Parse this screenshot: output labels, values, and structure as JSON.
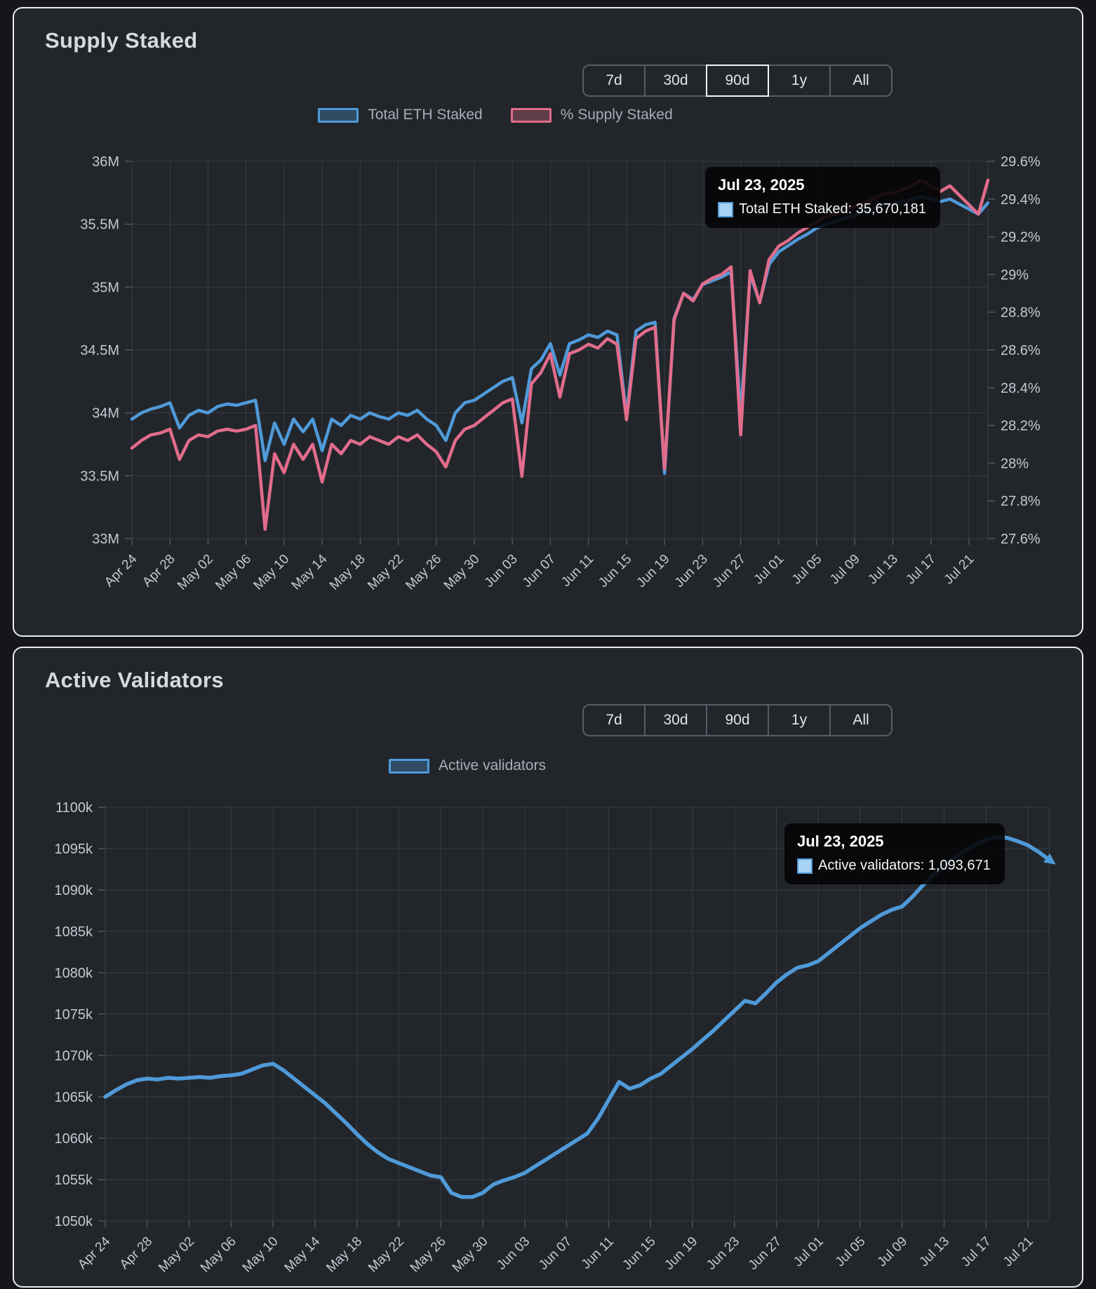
{
  "supply_staked": {
    "title": "Supply Staked",
    "ranges": [
      "7d",
      "30d",
      "90d",
      "1y",
      "All"
    ],
    "selected_range": "90d",
    "legend": [
      {
        "label": "Total ETH Staked",
        "color": "#4f9ad9"
      },
      {
        "label": "% Supply Staked",
        "color": "#e26c8b"
      }
    ],
    "tooltip": {
      "date": "Jul 23, 2025",
      "text": "Total ETH Staked: 35,670,181",
      "swatch_color": "#a9d3f3"
    }
  },
  "active_validators": {
    "title": "Active Validators",
    "ranges": [
      "7d",
      "30d",
      "90d",
      "1y",
      "All"
    ],
    "selected_range": null,
    "legend": [
      {
        "label": "Active validators",
        "color": "#4f9ad9"
      }
    ],
    "tooltip": {
      "date": "Jul 23, 2025",
      "text": "Active validators: 1,093,671",
      "swatch_color": "#a9d3f3"
    }
  },
  "chart_data": [
    {
      "type": "line",
      "title": "Supply Staked",
      "x_labels": [
        "Apr 24",
        "Apr 28",
        "May 02",
        "May 06",
        "May 10",
        "May 14",
        "May 18",
        "May 22",
        "May 26",
        "May 30",
        "Jun 03",
        "Jun 07",
        "Jun 11",
        "Jun 15",
        "Jun 19",
        "Jun 23",
        "Jun 27",
        "Jul 01",
        "Jul 05",
        "Jul 09",
        "Jul 13",
        "Jul 17",
        "Jul 21"
      ],
      "x_label_step": 4,
      "grid": true,
      "legend_position": "top-center",
      "y_left": {
        "min": 33,
        "max": 36,
        "unit": "M ETH",
        "ticks": [
          "36M",
          "35.5M",
          "35M",
          "34.5M",
          "34M",
          "33.5M",
          "33M"
        ]
      },
      "y_right": {
        "min": 27.6,
        "max": 29.6,
        "unit": "%",
        "ticks": [
          "29.6%",
          "29.4%",
          "29.2%",
          "29%",
          "28.8%",
          "28.6%",
          "28.4%",
          "28.2%",
          "28%",
          "27.8%",
          "27.6%"
        ]
      },
      "series": [
        {
          "name": "Total ETH Staked",
          "axis": "left",
          "color": "#4f9ad9",
          "values": [
            33.95,
            34.0,
            34.03,
            34.05,
            34.08,
            33.88,
            33.98,
            34.02,
            34.0,
            34.05,
            34.07,
            34.06,
            34.08,
            34.1,
            33.62,
            33.92,
            33.75,
            33.95,
            33.85,
            33.95,
            33.7,
            33.95,
            33.9,
            33.98,
            33.95,
            34.0,
            33.97,
            33.95,
            34.0,
            33.98,
            34.02,
            33.95,
            33.9,
            33.78,
            34.0,
            34.08,
            34.1,
            34.15,
            34.2,
            34.25,
            34.28,
            33.92,
            34.35,
            34.42,
            34.55,
            34.3,
            34.55,
            34.58,
            34.62,
            34.6,
            34.65,
            34.62,
            33.98,
            34.65,
            34.7,
            34.72,
            33.52,
            34.75,
            34.95,
            34.9,
            35.02,
            35.05,
            35.08,
            35.12,
            33.98,
            35.1,
            34.88,
            35.18,
            35.28,
            35.33,
            35.38,
            35.42,
            35.47,
            35.5,
            35.52,
            35.55,
            35.57,
            35.6,
            35.62,
            35.65,
            35.66,
            35.68,
            35.7,
            35.72,
            35.7,
            35.68,
            35.7,
            35.66,
            35.62,
            35.58,
            35.67
          ]
        },
        {
          "name": "% Supply Staked",
          "axis": "right",
          "color": "#e26c8b",
          "values": [
            28.08,
            28.12,
            28.15,
            28.16,
            28.18,
            28.02,
            28.12,
            28.15,
            28.14,
            28.17,
            28.18,
            28.17,
            28.18,
            28.2,
            27.65,
            28.05,
            27.95,
            28.1,
            28.02,
            28.1,
            27.9,
            28.1,
            28.05,
            28.12,
            28.1,
            28.14,
            28.12,
            28.1,
            28.14,
            28.12,
            28.15,
            28.1,
            28.06,
            27.98,
            28.12,
            28.18,
            28.2,
            28.24,
            28.28,
            28.32,
            28.34,
            27.93,
            28.42,
            28.48,
            28.58,
            28.35,
            28.58,
            28.6,
            28.63,
            28.61,
            28.66,
            28.63,
            28.23,
            28.66,
            28.7,
            28.72,
            27.97,
            28.76,
            28.9,
            28.86,
            28.95,
            28.98,
            29.0,
            29.04,
            28.15,
            29.02,
            28.85,
            29.08,
            29.15,
            29.18,
            29.22,
            29.25,
            29.28,
            29.31,
            29.32,
            29.35,
            29.36,
            29.38,
            29.4,
            29.43,
            29.43,
            29.45,
            29.47,
            29.5,
            29.47,
            29.44,
            29.47,
            29.42,
            29.37,
            29.32,
            29.5
          ]
        }
      ],
      "highlight": {
        "date": "Jul 23, 2025",
        "series": "Total ETH Staked",
        "value": "35,670,181"
      }
    },
    {
      "type": "line",
      "title": "Active Validators",
      "x_labels": [
        "Apr 24",
        "Apr 28",
        "May 02",
        "May 06",
        "May 10",
        "May 14",
        "May 18",
        "May 22",
        "May 26",
        "May 30",
        "Jun 03",
        "Jun 07",
        "Jun 11",
        "Jun 15",
        "Jun 19",
        "Jun 23",
        "Jun 27",
        "Jul 01",
        "Jul 05",
        "Jul 09",
        "Jul 13",
        "Jul 17",
        "Jul 21"
      ],
      "x_label_step": 4,
      "grid": true,
      "legend_position": "top-center",
      "y_left": {
        "min": 1050,
        "max": 1100,
        "unit": "k validators",
        "ticks": [
          "1100k",
          "1095k",
          "1090k",
          "1085k",
          "1080k",
          "1075k",
          "1070k",
          "1065k",
          "1060k",
          "1055k",
          "1050k"
        ]
      },
      "y_right": null,
      "series": [
        {
          "name": "Active validators",
          "axis": "left",
          "color": "#4f9ad9",
          "end_arrow": true,
          "values": [
            1065.0,
            1065.8,
            1066.5,
            1067.0,
            1067.2,
            1067.1,
            1067.3,
            1067.2,
            1067.3,
            1067.4,
            1067.3,
            1067.5,
            1067.6,
            1067.8,
            1068.3,
            1068.8,
            1069.0,
            1068.2,
            1067.2,
            1066.2,
            1065.2,
            1064.2,
            1063.0,
            1061.8,
            1060.5,
            1059.3,
            1058.3,
            1057.5,
            1057.0,
            1056.5,
            1056.0,
            1055.5,
            1055.3,
            1053.4,
            1052.9,
            1052.9,
            1053.4,
            1054.4,
            1054.9,
            1055.3,
            1055.8,
            1056.6,
            1057.4,
            1058.2,
            1059.0,
            1059.8,
            1060.6,
            1062.4,
            1064.6,
            1066.8,
            1066.0,
            1066.4,
            1067.2,
            1067.8,
            1068.8,
            1069.8,
            1070.8,
            1071.9,
            1073.0,
            1074.2,
            1075.4,
            1076.6,
            1076.3,
            1077.5,
            1078.8,
            1079.8,
            1080.6,
            1080.9,
            1081.4,
            1082.4,
            1083.4,
            1084.4,
            1085.4,
            1086.2,
            1087.0,
            1087.6,
            1088.0,
            1089.2,
            1090.6,
            1091.8,
            1092.9,
            1093.9,
            1094.8,
            1095.5,
            1096.1,
            1096.4,
            1096.3,
            1095.9,
            1095.4,
            1094.6,
            1093.671
          ]
        }
      ],
      "highlight": {
        "date": "Jul 23, 2025",
        "series": "Active validators",
        "value": "1,093,671"
      }
    }
  ]
}
